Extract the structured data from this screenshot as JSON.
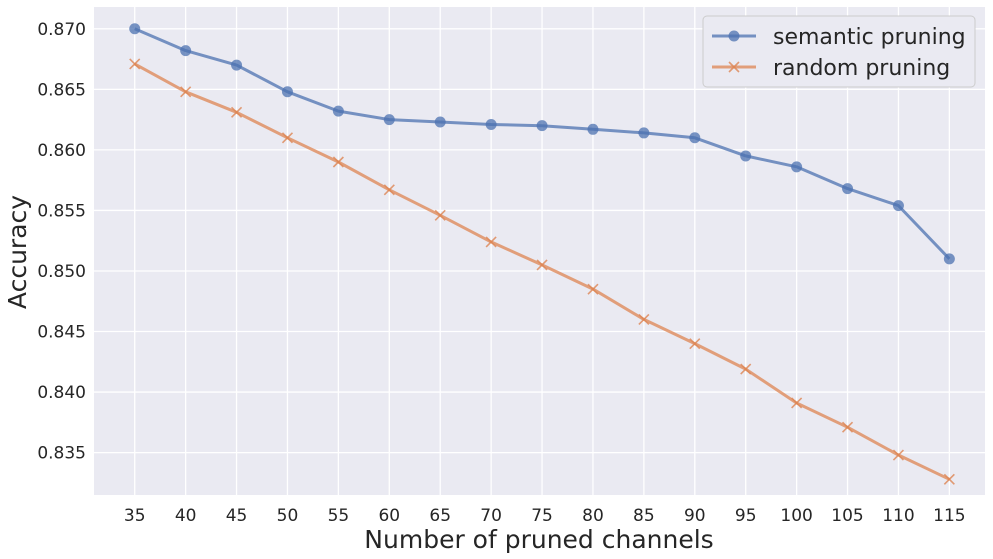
{
  "chart_data": {
    "type": "line",
    "title": "",
    "xlabel": "Number of pruned channels",
    "ylabel": "Accuracy",
    "x": [
      35,
      40,
      45,
      50,
      55,
      60,
      65,
      70,
      75,
      80,
      85,
      90,
      95,
      100,
      105,
      110,
      115
    ],
    "xticks": [
      "35",
      "40",
      "45",
      "50",
      "55",
      "60",
      "65",
      "70",
      "75",
      "80",
      "85",
      "90",
      "95",
      "100",
      "105",
      "110",
      "115"
    ],
    "yticks": [
      "0.835",
      "0.840",
      "0.845",
      "0.850",
      "0.855",
      "0.860",
      "0.865",
      "0.870"
    ],
    "yticks_values": [
      0.835,
      0.84,
      0.845,
      0.85,
      0.855,
      0.86,
      0.865,
      0.87
    ],
    "xlim": [
      31,
      118.5
    ],
    "ylim": [
      0.8315,
      0.8718
    ],
    "grid": true,
    "legend_position": "top-right",
    "series": [
      {
        "name": "semantic pruning",
        "marker": "circle",
        "color": "#4c72b0",
        "values": [
          0.87,
          0.8682,
          0.867,
          0.8648,
          0.8632,
          0.8625,
          0.8623,
          0.8621,
          0.862,
          0.8617,
          0.8614,
          0.861,
          0.8595,
          0.8586,
          0.8568,
          0.8554,
          0.851
        ]
      },
      {
        "name": "random pruning",
        "marker": "x",
        "color": "#dd8452",
        "values": [
          0.8671,
          0.8648,
          0.8631,
          0.861,
          0.859,
          0.8567,
          0.8546,
          0.8524,
          0.8505,
          0.8485,
          0.846,
          0.844,
          0.8419,
          0.8391,
          0.8371,
          0.8348,
          0.8328
        ]
      }
    ]
  }
}
